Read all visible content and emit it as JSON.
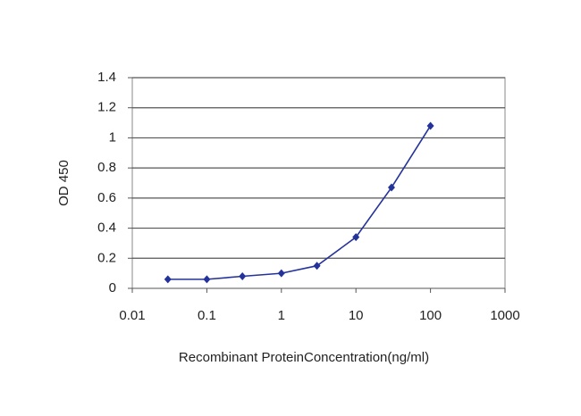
{
  "chart_data": {
    "type": "line",
    "xlabel": "Recombinant ProteinConcentration(ng/ml)",
    "ylabel": "OD 450",
    "x": [
      0.03,
      0.1,
      0.3,
      1,
      3,
      10,
      30,
      100
    ],
    "values": [
      0.06,
      0.06,
      0.08,
      0.1,
      0.15,
      0.34,
      0.67,
      1.08
    ],
    "color": "#23339a",
    "xscale": "log",
    "xlim": [
      0.01,
      1000
    ],
    "xticks": [
      0.01,
      0.1,
      1,
      10,
      100,
      1000
    ],
    "ylim": [
      0,
      1.4
    ],
    "yticks": [
      0,
      0.2,
      0.4,
      0.6,
      0.8,
      1,
      1.2,
      1.4
    ],
    "grid": true
  }
}
